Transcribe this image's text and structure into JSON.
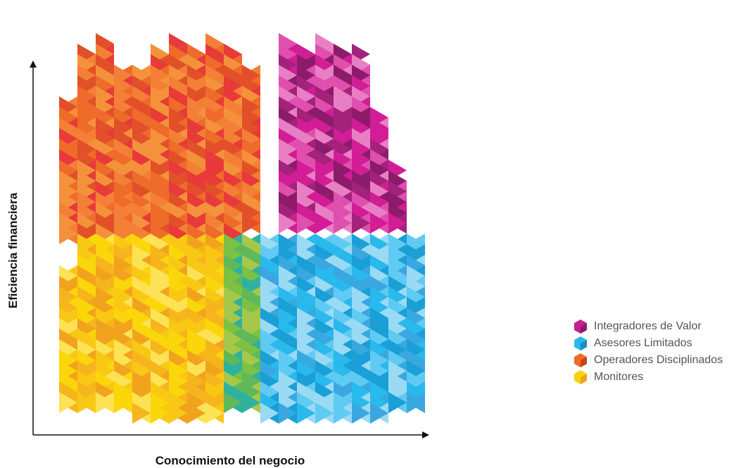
{
  "axes": {
    "x_label": "Conocimiento del negocio",
    "y_label": "Eficiencia financiera"
  },
  "legend": [
    {
      "label": "Integradores de Valor",
      "icon": "hexagon-cube-icon",
      "color": "#c81e93",
      "shade": "#8f1a6c"
    },
    {
      "label": "Asesores Limitados",
      "icon": "hexagon-cube-icon",
      "color": "#29b9ec",
      "shade": "#1a8fc4"
    },
    {
      "label": "Operadores Disciplinados",
      "icon": "hexagon-cube-icon",
      "color": "#ef6b2a",
      "shade": "#c4451c"
    },
    {
      "label": "Monitores",
      "icon": "hexagon-cube-icon",
      "color": "#fbd20a",
      "shade": "#f0a41c"
    }
  ],
  "palette": {
    "magenta": [
      "#d21d97",
      "#e04fae",
      "#a3227a",
      "#8c1c6b",
      "#e87fc4"
    ],
    "cyan": [
      "#29b9ec",
      "#60cbf2",
      "#1a9fd6",
      "#9adaf5",
      "#3aa8e0"
    ],
    "orange": [
      "#ef6b2a",
      "#f47f36",
      "#e2502a",
      "#f4923c",
      "#e83a3a"
    ],
    "yellow": [
      "#fbd60a",
      "#f9c814",
      "#f6b51c",
      "#f2a31e",
      "#fde256"
    ],
    "green": [
      "#7cc143",
      "#5fb95a",
      "#2fb1a0",
      "#a6c84a"
    ]
  }
}
